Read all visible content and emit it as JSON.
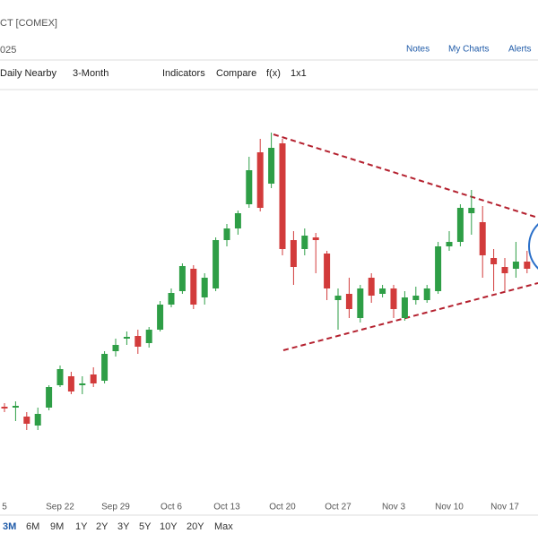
{
  "header": {
    "symbol": "CT [COMEX]",
    "date": "025",
    "links": [
      "Notes",
      "My Charts",
      "Alerts"
    ]
  },
  "toolbar": [
    "Daily Nearby",
    "3-Month",
    "Indicators",
    "Compare",
    "f(x)",
    "1x1"
  ],
  "ranges": [
    "3M",
    "6M",
    "9M",
    "1Y",
    "2Y",
    "3Y",
    "5Y",
    "10Y",
    "20Y",
    "Max"
  ],
  "chart_data": {
    "type": "candlestick",
    "up_color": "#2e9e46",
    "down_color": "#d23b3b",
    "categories": [
      "5",
      null,
      null,
      null,
      null,
      "Sep 22",
      null,
      null,
      null,
      null,
      "Sep 29",
      null,
      null,
      null,
      null,
      "Oct 6",
      null,
      null,
      null,
      null,
      "Oct 13",
      null,
      null,
      null,
      null,
      "Oct 20",
      null,
      null,
      null,
      null,
      "Oct 27",
      null,
      null,
      null,
      null,
      "Nov 3",
      null,
      null,
      null,
      null,
      "Nov 10",
      null,
      null,
      null,
      null,
      "Nov 17",
      null,
      null
    ],
    "open": [
      3612,
      3610,
      3590,
      3570,
      3610,
      3660,
      3680,
      3660,
      3684,
      3670,
      3736,
      3764,
      3770,
      3754,
      3784,
      3840,
      3870,
      3920,
      3856,
      3876,
      3984,
      4010,
      4064,
      4180,
      4110,
      4200,
      3984,
      3964,
      3990,
      3954,
      3850,
      3864,
      3810,
      3900,
      3864,
      3876,
      3810,
      3850,
      3850,
      3870,
      3970,
      3980,
      4044,
      4024,
      3944,
      3924,
      3920,
      3936
    ],
    "high": [
      3620,
      3624,
      3600,
      3610,
      3660,
      3704,
      3690,
      3680,
      3700,
      3736,
      3764,
      3780,
      3784,
      3790,
      3848,
      3876,
      3932,
      3928,
      3910,
      3990,
      4020,
      4050,
      4170,
      4210,
      4224,
      4210,
      4004,
      4010,
      4000,
      3960,
      3876,
      3900,
      3884,
      3910,
      3884,
      3884,
      3870,
      3880,
      3884,
      3980,
      4004,
      4064,
      4096,
      4060,
      3964,
      3944,
      3980,
      3960
    ],
    "low": [
      3600,
      3580,
      3560,
      3560,
      3604,
      3656,
      3640,
      3640,
      3656,
      3664,
      3724,
      3750,
      3730,
      3744,
      3780,
      3834,
      3864,
      3830,
      3840,
      3870,
      3970,
      3996,
      4056,
      4048,
      4100,
      3950,
      3884,
      3950,
      3910,
      3850,
      3784,
      3810,
      3800,
      3844,
      3856,
      3810,
      3804,
      3840,
      3844,
      3864,
      3960,
      3970,
      3996,
      3900,
      3870,
      3870,
      3900,
      3910
    ],
    "close": [
      3608,
      3614,
      3574,
      3596,
      3656,
      3696,
      3646,
      3664,
      3664,
      3730,
      3750,
      3768,
      3746,
      3784,
      3840,
      3866,
      3926,
      3840,
      3900,
      3984,
      4010,
      4044,
      4140,
      4056,
      4190,
      3964,
      3924,
      3994,
      3984,
      3876,
      3860,
      3830,
      3876,
      3860,
      3876,
      3830,
      3856,
      3860,
      3876,
      3970,
      3980,
      4056,
      4056,
      3950,
      3930,
      3910,
      3936,
      3920
    ],
    "ylim": [
      3400,
      4320
    ]
  }
}
